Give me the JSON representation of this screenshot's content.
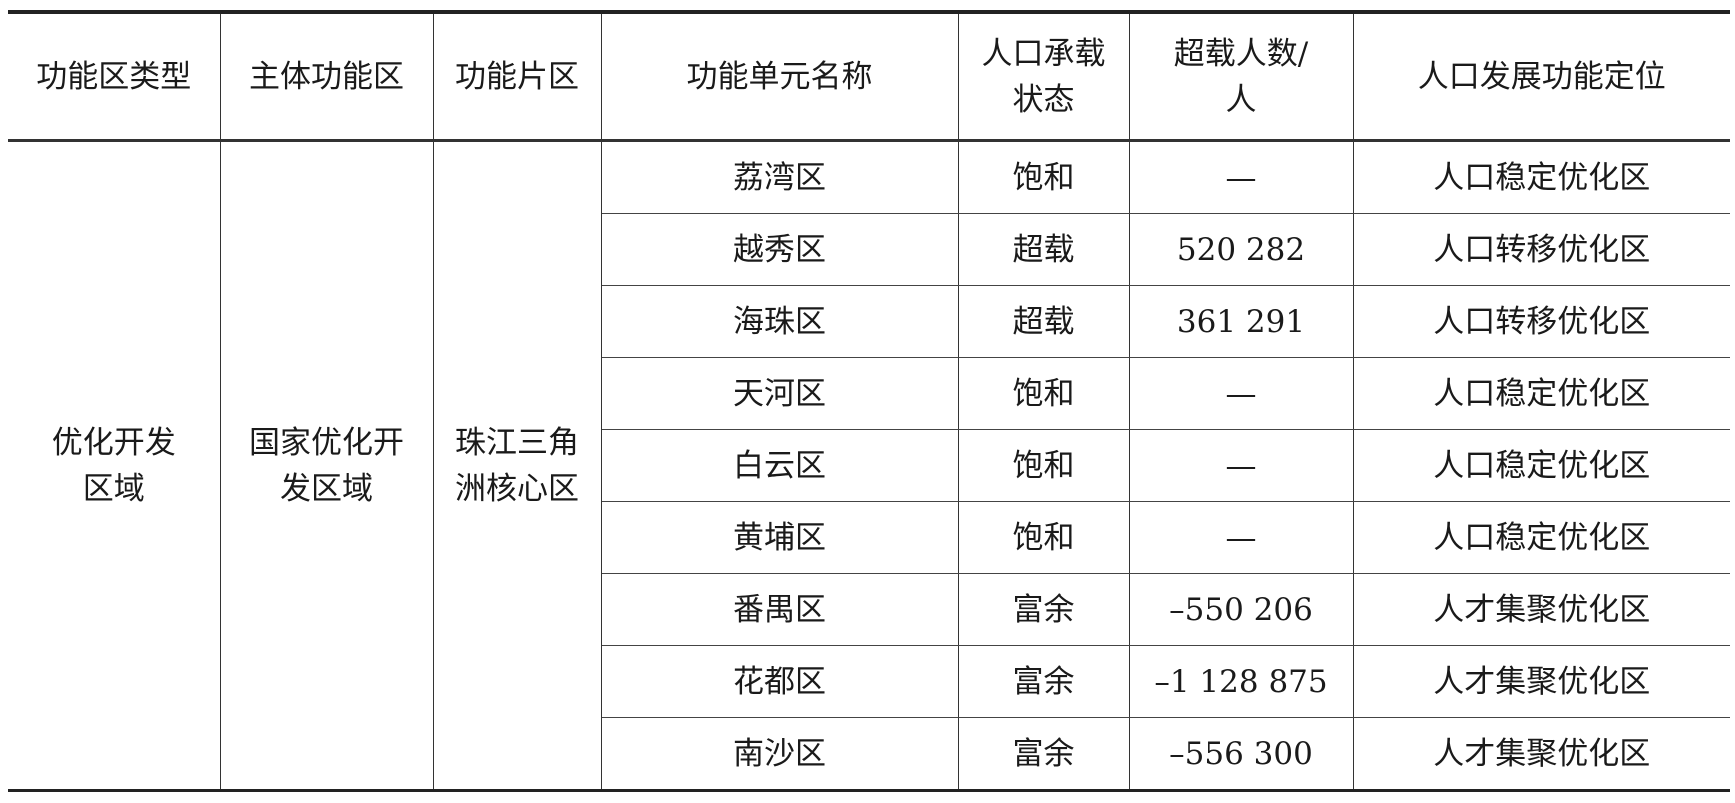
{
  "headers": [
    "功能区类型",
    "主体功能区",
    "功能片区",
    "功能单元名称",
    "人口承载状态",
    "超载人数/人",
    "人口发展功能定位"
  ],
  "group": {
    "type": "优化开发区域",
    "main_zone": "国家优化开发区域",
    "sub_zone": "珠江三角洲核心区"
  },
  "rows": [
    {
      "name": "荔湾区",
      "status": "饱和",
      "overload": "—",
      "positioning": "人口稳定优化区"
    },
    {
      "name": "越秀区",
      "status": "超载",
      "overload": "520 282",
      "positioning": "人口转移优化区"
    },
    {
      "name": "海珠区",
      "status": "超载",
      "overload": "361 291",
      "positioning": "人口转移优化区"
    },
    {
      "name": "天河区",
      "status": "饱和",
      "overload": "—",
      "positioning": "人口稳定优化区"
    },
    {
      "name": "白云区",
      "status": "饱和",
      "overload": "—",
      "positioning": "人口稳定优化区"
    },
    {
      "name": "黄埔区",
      "status": "饱和",
      "overload": "—",
      "positioning": "人口稳定优化区"
    },
    {
      "name": "番禺区",
      "status": "富余",
      "overload": "–550 206",
      "positioning": "人才集聚优化区"
    },
    {
      "name": "花都区",
      "status": "富余",
      "overload": "–1 128 875",
      "positioning": "人才集聚优化区"
    },
    {
      "name": "南沙区",
      "status": "富余",
      "overload": "–556 300",
      "positioning": "人才集聚优化区"
    }
  ]
}
